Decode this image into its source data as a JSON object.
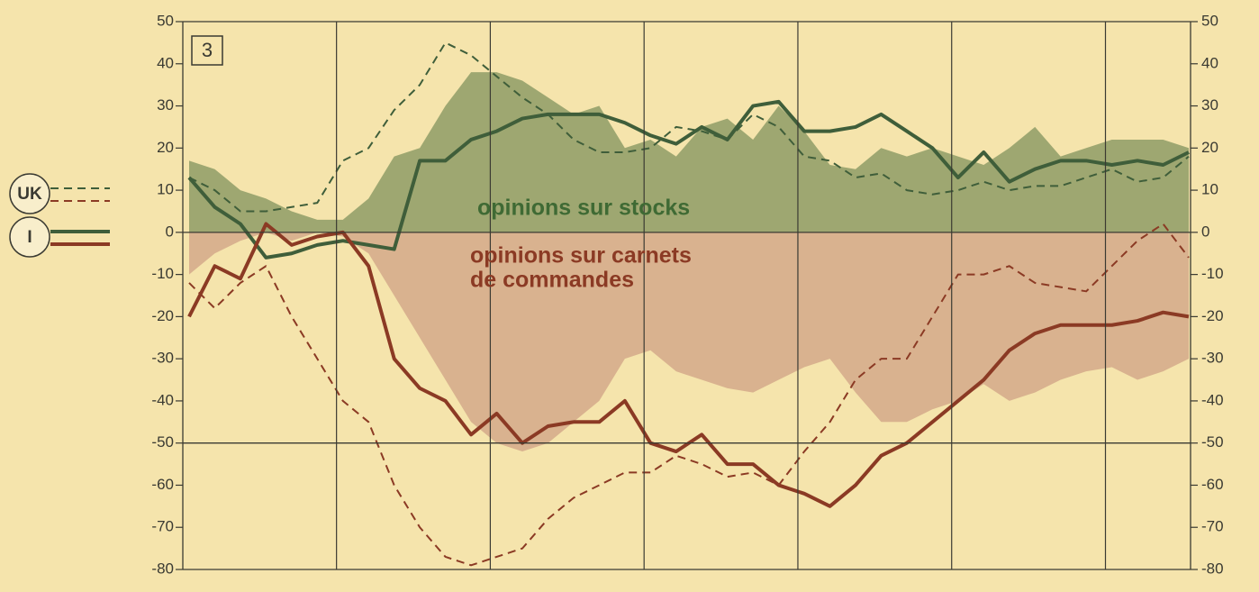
{
  "chart_data": {
    "type": "line",
    "panel_label": "3",
    "x": [
      0,
      2,
      4,
      6,
      8,
      10,
      12,
      14,
      16,
      18,
      20,
      22,
      24,
      26,
      28,
      30,
      32,
      34,
      36,
      38,
      40,
      42,
      44,
      46,
      48,
      50,
      52,
      54,
      56,
      58,
      60,
      62,
      64,
      66,
      68,
      70,
      72,
      74,
      76,
      78
    ],
    "xlim": [
      0,
      78
    ],
    "xticks": [
      11.5,
      23.5,
      35.5,
      47.5,
      59.5,
      71.5
    ],
    "ylim": [
      -80,
      50
    ],
    "yticks": [
      50,
      40,
      30,
      20,
      10,
      0,
      -10,
      -20,
      -30,
      -40,
      -50,
      -60,
      -70,
      -80
    ],
    "y2lim": [
      -80,
      50
    ],
    "y2ticks": [
      50,
      40,
      30,
      20,
      10,
      0,
      -10,
      -20,
      -30,
      -40,
      -50,
      -60,
      -70,
      -80
    ],
    "ygrid": [
      0,
      -50
    ],
    "areas": [
      {
        "name": "opinions sur stocks",
        "color": "#8e9c66",
        "values": [
          17,
          15,
          10,
          8,
          5,
          3,
          3,
          8,
          18,
          20,
          30,
          38,
          38,
          36,
          32,
          28,
          30,
          20,
          22,
          18,
          25,
          27,
          22,
          30,
          24,
          16,
          15,
          20,
          18,
          20,
          18,
          16,
          20,
          25,
          18,
          20,
          22,
          22,
          22,
          20
        ]
      },
      {
        "name": [
          "opinions sur carnets",
          "de commandes"
        ],
        "color": "#d3a98a",
        "values": [
          -10,
          -5,
          -2,
          0,
          -2,
          0,
          -1,
          -5,
          -15,
          -25,
          -35,
          -45,
          -50,
          -52,
          -50,
          -45,
          -40,
          -30,
          -28,
          -33,
          -35,
          -37,
          -38,
          -35,
          -32,
          -30,
          -38,
          -45,
          -45,
          -42,
          -40,
          -36,
          -40,
          -38,
          -35,
          -33,
          -32,
          -35,
          -33,
          -30
        ]
      }
    ],
    "series": [
      {
        "name": "UK",
        "color": "#3f5e3a",
        "dashed": true,
        "values": [
          13,
          10,
          5,
          5,
          6,
          7,
          17,
          20,
          29,
          35,
          45,
          42,
          37,
          32,
          28,
          22,
          19,
          19,
          20,
          25,
          24,
          22,
          28,
          25,
          18,
          17,
          13,
          14,
          10,
          9,
          10,
          12,
          10,
          11,
          11,
          13,
          15,
          12,
          13,
          18
        ]
      },
      {
        "name": "UK",
        "color": "#8b3a24",
        "dashed": true,
        "values": [
          -12,
          -18,
          -12,
          -8,
          -20,
          -30,
          -40,
          -45,
          -60,
          -70,
          -77,
          -79,
          -77,
          -75,
          -68,
          -63,
          -60,
          -57,
          -57,
          -53,
          -55,
          -58,
          -57,
          -60,
          -52,
          -45,
          -35,
          -30,
          -30,
          -20,
          -10,
          -10,
          -8,
          -12,
          -13,
          -14,
          -8,
          -2,
          2,
          -6
        ]
      },
      {
        "name": "I",
        "color": "#3f5e3a",
        "dashed": false,
        "values": [
          13,
          6,
          2,
          -6,
          -5,
          -3,
          -2,
          -3,
          -4,
          17,
          17,
          22,
          24,
          27,
          28,
          28,
          28,
          26,
          23,
          21,
          25,
          22,
          30,
          31,
          24,
          24,
          25,
          28,
          24,
          20,
          13,
          19,
          12,
          15,
          17,
          17,
          16,
          17,
          16,
          19
        ]
      },
      {
        "name": "I",
        "color": "#8b3a24",
        "dashed": false,
        "values": [
          -20,
          -8,
          -11,
          2,
          -3,
          -1,
          0,
          -8,
          -30,
          -37,
          -40,
          -48,
          -43,
          -50,
          -46,
          -45,
          -45,
          -40,
          -50,
          -52,
          -48,
          -55,
          -55,
          -60,
          -62,
          -65,
          -60,
          -53,
          -50,
          -45,
          -40,
          -35,
          -28,
          -24,
          -22,
          -22,
          -22,
          -21,
          -19,
          -20
        ]
      }
    ]
  }
}
